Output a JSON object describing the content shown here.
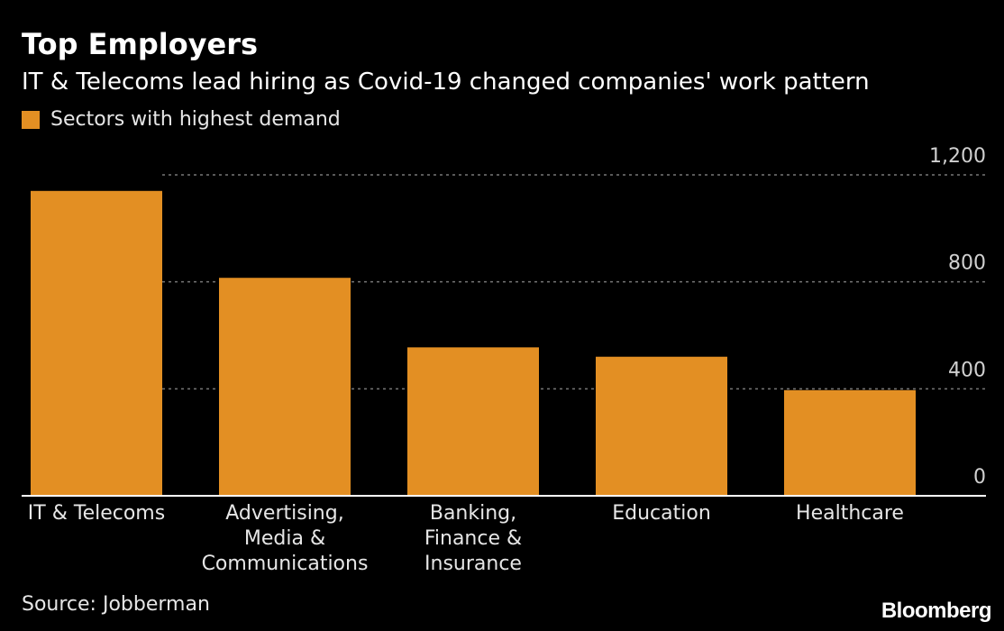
{
  "chart_data": {
    "type": "bar",
    "title": "Top Employers",
    "subtitle": "IT & Telecoms lead hiring as Covid-19 changed companies' work pattern",
    "legend": [
      "Sectors with highest demand"
    ],
    "legend_placement": "top-left",
    "categories": [
      [
        "IT & Telecoms"
      ],
      [
        "Advertising,",
        "Media &",
        "Communications"
      ],
      [
        "Banking,",
        "Finance &",
        "Insurance"
      ],
      [
        "Education"
      ],
      [
        "Healthcare"
      ]
    ],
    "series": [
      {
        "name": "Sectors with highest demand",
        "values": [
          1140,
          815,
          555,
          520,
          395
        ]
      }
    ],
    "ylim": [
      0,
      1200
    ],
    "yticks": [
      0,
      400,
      800,
      1200
    ],
    "ytick_labels": [
      "0",
      "400",
      "800",
      "1,200"
    ],
    "grid": true,
    "xlabel": "",
    "ylabel": "",
    "bar_color": "#e38f23",
    "gridline_color": "#777777",
    "source": "Source: Jobberman",
    "brand": "Bloomberg"
  }
}
